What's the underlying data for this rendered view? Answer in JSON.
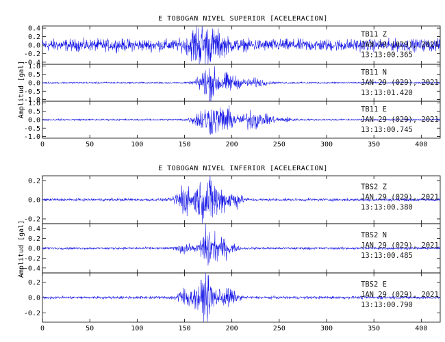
{
  "colors": {
    "trace": "#1414e6",
    "axis": "#000000",
    "text": "#000000"
  },
  "chart_data": [
    {
      "type": "line",
      "title": "E TOBOGAN NIVEL SUPERIOR [ACELERACION]",
      "ylabel": "Amplitud [gal]",
      "xlabel": "",
      "xlim": [
        0,
        420
      ],
      "xticks": [
        0,
        50,
        100,
        150,
        200,
        250,
        300,
        350,
        400
      ],
      "grid": false,
      "series": [
        {
          "name": "TB11  Z",
          "date": "JAN 29 (029), 2021",
          "time": "13:13:00.365",
          "ylim": [
            -0.45,
            0.45
          ],
          "yticks": [
            "0.4",
            "0.2",
            "0.0",
            "-0.2",
            "-0.4"
          ],
          "yticklabels": [
            "0.4",
            "0.2",
            "0.0",
            "-0.2",
            "-0.4"
          ],
          "noise_amp": 0.12,
          "bursts": [
            [
              165,
              0.35,
              10
            ],
            [
              182,
              0.2,
              12
            ]
          ]
        },
        {
          "name": "TB11  N",
          "date": "JAN 29 (029), 2021",
          "time": "13:13:01.420",
          "ylim": [
            -1.1,
            1.1
          ],
          "yticks": [
            "1.0",
            "0.5",
            "0.0",
            "-0.5",
            "-1.0"
          ],
          "yticklabels": [
            "1.0",
            "0.5",
            "0.0",
            "-0.5",
            "-1.0"
          ],
          "noise_amp": 0.04,
          "bursts": [
            [
              175,
              0.8,
              10
            ],
            [
              195,
              0.45,
              14
            ],
            [
              225,
              0.2,
              12
            ]
          ]
        },
        {
          "name": "TB11  E",
          "date": "JAN 29 (029), 2021",
          "time": "13:13:00.745",
          "ylim": [
            -1.1,
            1.1
          ],
          "yticks": [
            "1.0",
            "0.5",
            "0.0",
            "-0.5",
            "-1.0"
          ],
          "yticklabels": [
            "1.0",
            "0.5",
            "0.0",
            "-0.5",
            "-1.0"
          ],
          "noise_amp": 0.04,
          "bursts": [
            [
              175,
              0.7,
              14
            ],
            [
              195,
              0.5,
              12
            ],
            [
              222,
              0.55,
              9
            ],
            [
              240,
              0.2,
              8
            ],
            [
              258,
              0.1,
              8
            ]
          ]
        }
      ]
    },
    {
      "type": "line",
      "title": "E TOBOGAN NIVEL INFERIOR [ACELERACION]",
      "ylabel": "Amplitud [gal]",
      "xlabel": "",
      "xlim": [
        0,
        420
      ],
      "xticks": [
        0,
        50,
        100,
        150,
        200,
        250,
        300,
        350,
        400
      ],
      "grid": false,
      "series": [
        {
          "name": "TBS2   Z",
          "date": "JAN 29 (029), 2021",
          "time": "13:13:00.380",
          "ylim": [
            -0.25,
            0.25
          ],
          "yticks": [
            "0.2",
            "0.0",
            "-0.2"
          ],
          "yticklabels": [
            "0.2",
            "0.0",
            "-0.2"
          ],
          "noise_amp": 0.012,
          "bursts": [
            [
              148,
              0.14,
              7
            ],
            [
              165,
              0.12,
              10
            ],
            [
              180,
              0.18,
              10
            ],
            [
              200,
              0.08,
              10
            ]
          ]
        },
        {
          "name": "TBS2   N",
          "date": "JAN 29 (029), 2021",
          "time": "13:13:00.485",
          "ylim": [
            -0.5,
            0.5
          ],
          "yticks": [
            "0.4",
            "0.2",
            "0.0",
            "-0.2",
            "-0.4"
          ],
          "yticklabels": [
            "0.4",
            "0.2",
            "0.0",
            "-0.2",
            "-0.4"
          ],
          "noise_amp": 0.02,
          "bursts": [
            [
              150,
              0.08,
              8
            ],
            [
              175,
              0.38,
              8
            ],
            [
              192,
              0.15,
              10
            ]
          ]
        },
        {
          "name": "TBS2   E",
          "date": "JAN 29 (029), 2021",
          "time": "13:13:00.790",
          "ylim": [
            -0.32,
            0.32
          ],
          "yticks": [
            "0.2",
            "0.0",
            "-0.2"
          ],
          "yticklabels": [
            "0.2",
            "0.0",
            "-0.2"
          ],
          "noise_amp": 0.015,
          "bursts": [
            [
              150,
              0.1,
              8
            ],
            [
              172,
              0.24,
              10
            ],
            [
              195,
              0.1,
              10
            ]
          ]
        }
      ]
    }
  ]
}
